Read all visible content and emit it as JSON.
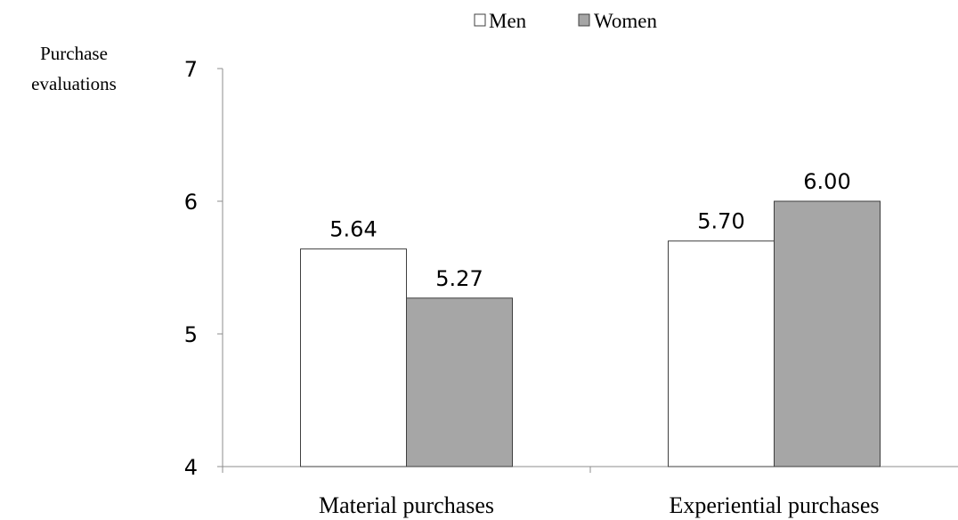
{
  "chart_data": {
    "type": "bar",
    "ylabel_lines": [
      "Purchase",
      "evaluations"
    ],
    "xlabel": "",
    "categories": [
      "Material purchases",
      "Experiential purchases"
    ],
    "series": [
      {
        "name": "Men",
        "values": [
          5.64,
          5.7
        ],
        "color": "#ffffff",
        "value_labels": [
          "5.64",
          "5.70"
        ]
      },
      {
        "name": "Women",
        "values": [
          5.27,
          6.0
        ],
        "color": "#a6a6a6",
        "value_labels": [
          "5.27",
          "6.00"
        ]
      }
    ],
    "ylim": [
      4,
      7
    ],
    "yticks": [
      4,
      5,
      6,
      7
    ],
    "grid": false,
    "legend_position": "top-center",
    "bar_stroke_color": "#3f3f3f",
    "axis_color": "#8c8c8c"
  }
}
